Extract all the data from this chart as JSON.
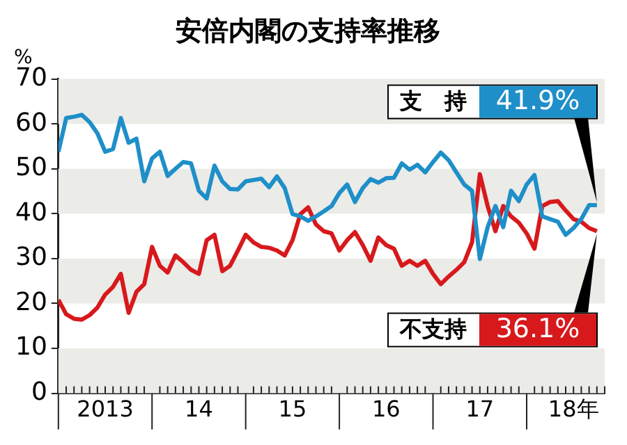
{
  "chart_data": {
    "type": "line",
    "title": "安倍内閣の支持率推移",
    "ylabel": "%",
    "x": [
      "2013-01",
      "2013-02",
      "2013-03",
      "2013-04",
      "2013-05",
      "2013-06",
      "2013-07",
      "2013-08",
      "2013-09",
      "2013-10",
      "2013-11",
      "2013-12",
      "2014-01",
      "2014-02",
      "2014-03",
      "2014-04",
      "2014-05",
      "2014-06",
      "2014-07",
      "2014-08",
      "2014-09",
      "2014-10",
      "2014-11",
      "2014-12",
      "2015-01",
      "2015-02",
      "2015-03",
      "2015-04",
      "2015-05",
      "2015-06",
      "2015-07",
      "2015-08",
      "2015-09",
      "2015-10",
      "2015-11",
      "2015-12",
      "2016-01",
      "2016-02",
      "2016-03",
      "2016-04",
      "2016-05",
      "2016-06",
      "2016-07",
      "2016-08",
      "2016-09",
      "2016-10",
      "2016-11",
      "2016-12",
      "2017-01",
      "2017-02",
      "2017-03",
      "2017-04",
      "2017-05",
      "2017-06",
      "2017-07",
      "2017-08",
      "2017-09",
      "2017-10",
      "2017-11",
      "2017-12",
      "2018-01",
      "2018-02",
      "2018-03",
      "2018-04",
      "2018-05",
      "2018-06",
      "2018-07",
      "2018-08",
      "2018-09",
      "2018-10"
    ],
    "series": [
      {
        "name": "支　持",
        "color": "#1e8fc8",
        "value_labels": [
          null,
          null,
          null,
          null,
          null,
          null,
          null,
          null,
          null,
          null,
          null,
          null,
          null,
          null,
          null,
          null,
          null,
          null,
          null,
          null,
          null,
          null,
          null,
          null,
          null,
          null,
          null,
          null,
          null,
          null,
          null,
          null,
          null,
          null,
          null,
          null,
          null,
          null,
          null,
          null,
          null,
          null,
          null,
          null,
          null,
          null,
          null,
          null,
          null,
          null,
          null,
          null,
          null,
          null,
          null,
          null,
          null,
          null,
          null,
          null,
          null,
          null,
          null,
          null,
          null,
          null,
          null,
          null,
          null,
          "41.9%"
        ],
        "values": [
          53.8,
          61.3,
          61.6,
          62,
          60.4,
          57.9,
          53.8,
          54.4,
          61.3,
          55.8,
          56.7,
          47.2,
          52.3,
          53.8,
          48.4,
          50,
          51.5,
          51.2,
          45.1,
          43.4,
          50.7,
          47.2,
          45.5,
          45.4,
          47.2,
          47.5,
          47.8,
          45.9,
          48.3,
          45.7,
          39.9,
          39.4,
          38.4,
          39.4,
          40.5,
          41.7,
          44.6,
          46.5,
          42.6,
          45.7,
          47.7,
          46.9,
          47.9,
          48,
          51.2,
          49.8,
          50.9,
          49.2,
          51.5,
          53.6,
          51.9,
          49.2,
          46.5,
          45.1,
          29.9,
          37,
          41.7,
          37,
          45.1,
          42.8,
          46.5,
          48.6,
          39.4,
          38.8,
          38.2,
          35.3,
          36.8,
          38.8,
          41.9,
          41.9
        ]
      },
      {
        "name": "不支持",
        "color": "#d7191c",
        "value_labels": [
          null,
          null,
          null,
          null,
          null,
          null,
          null,
          null,
          null,
          null,
          null,
          null,
          null,
          null,
          null,
          null,
          null,
          null,
          null,
          null,
          null,
          null,
          null,
          null,
          null,
          null,
          null,
          null,
          null,
          null,
          null,
          null,
          null,
          null,
          null,
          null,
          null,
          null,
          null,
          null,
          null,
          null,
          null,
          null,
          null,
          null,
          null,
          null,
          null,
          null,
          null,
          null,
          null,
          null,
          null,
          null,
          null,
          null,
          null,
          null,
          null,
          null,
          null,
          null,
          null,
          null,
          null,
          null,
          null,
          "36.1%"
        ],
        "values": [
          20.8,
          17.6,
          16.6,
          16.4,
          17.4,
          19.1,
          22,
          23.7,
          26.6,
          17.9,
          22.6,
          24.3,
          32.6,
          28.4,
          26.9,
          30.7,
          29.2,
          27.5,
          26.6,
          34.1,
          35.3,
          27.2,
          28.4,
          31.8,
          35.3,
          33.6,
          32.6,
          32.4,
          31.8,
          30.7,
          34.1,
          39.9,
          41.4,
          37.6,
          36.1,
          35.6,
          31.8,
          34.1,
          35.9,
          33,
          29.5,
          34.7,
          33,
          32.2,
          28.4,
          29.5,
          28.4,
          29.5,
          26.6,
          24.3,
          26,
          27.5,
          29.2,
          33.6,
          48.8,
          41.7,
          36.1,
          41.7,
          39.4,
          38,
          35.6,
          32.2,
          41.7,
          42.6,
          42.8,
          40.7,
          38.8,
          38.2,
          36.8,
          36.1
        ]
      }
    ],
    "xlim": [
      "2013-01",
      "2018-11"
    ],
    "xticks": [
      {
        "value": "2013-07",
        "label": "2013"
      },
      {
        "value": "2014-07",
        "label": "14"
      },
      {
        "value": "2015-07",
        "label": "15"
      },
      {
        "value": "2016-07",
        "label": "16"
      },
      {
        "value": "2017-07",
        "label": "17"
      },
      {
        "value": "2018-07",
        "label": "18年"
      }
    ],
    "ylim": [
      0,
      70
    ],
    "yticks": [
      0,
      10,
      20,
      30,
      40,
      50,
      60,
      70
    ],
    "bands": [
      {
        "axis": "y",
        "from": 0,
        "to": 10,
        "color": "#ebebe8"
      },
      {
        "axis": "y",
        "from": 20,
        "to": 30,
        "color": "#ebebe8"
      },
      {
        "axis": "y",
        "from": 40,
        "to": 50,
        "color": "#ebebe8"
      },
      {
        "axis": "y",
        "from": 60,
        "to": 70,
        "color": "#ebebe8"
      }
    ],
    "legend": false,
    "marker": "none",
    "line_style": "solid"
  }
}
